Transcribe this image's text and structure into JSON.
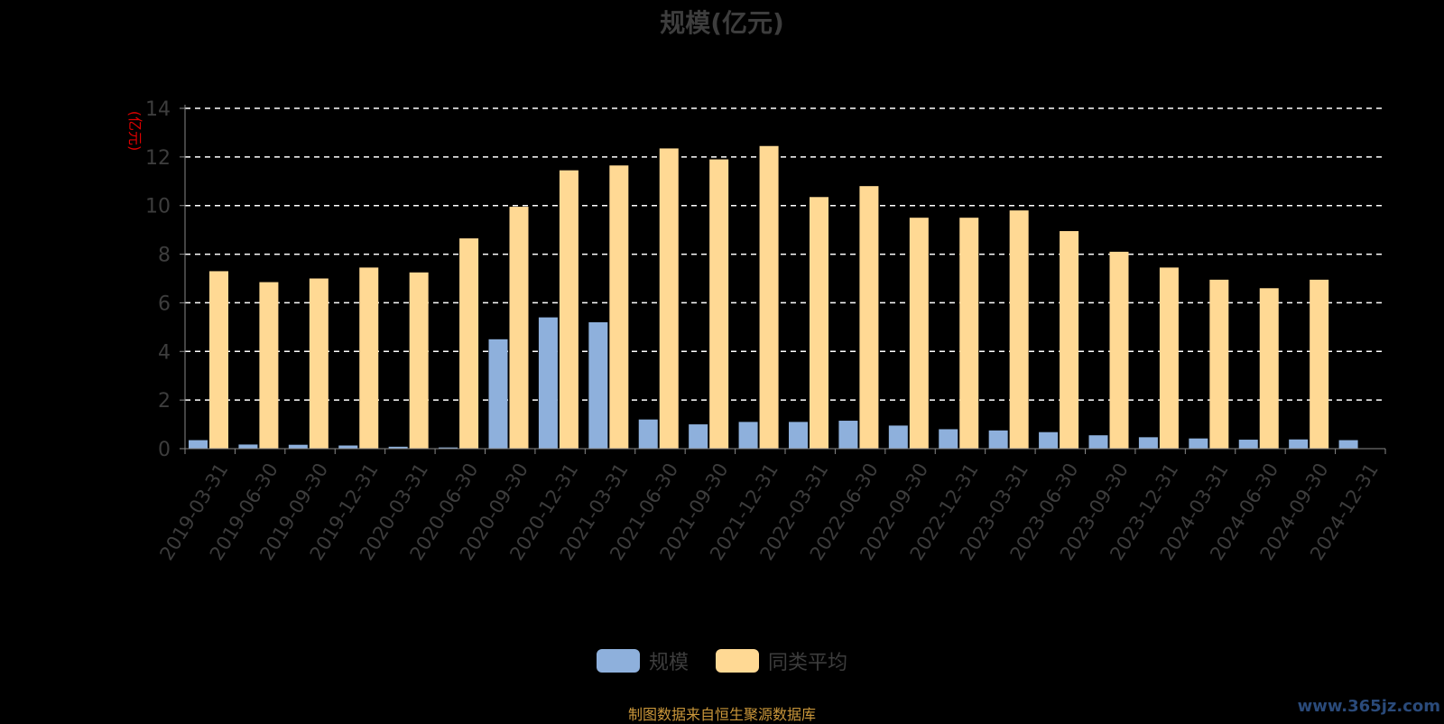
{
  "chart_data": {
    "type": "bar",
    "title": "规模(亿元)",
    "ylabel": "(亿元)",
    "ylim": [
      0,
      14
    ],
    "yticks": [
      0,
      2,
      4,
      6,
      8,
      10,
      12,
      14
    ],
    "grid": true,
    "legend_position": "bottom",
    "categories": [
      "2019-03-31",
      "2019-06-30",
      "2019-09-30",
      "2019-12-31",
      "2020-03-31",
      "2020-06-30",
      "2020-09-30",
      "2020-12-31",
      "2021-03-31",
      "2021-06-30",
      "2021-09-30",
      "2021-12-31",
      "2022-03-31",
      "2022-06-30",
      "2022-09-30",
      "2022-12-31",
      "2023-03-31",
      "2023-06-30",
      "2023-09-30",
      "2023-12-31",
      "2024-03-31",
      "2024-06-30",
      "2024-09-30",
      "2024-12-31"
    ],
    "series": [
      {
        "name": "规模",
        "color": "#8eb0dc",
        "values": [
          0.35,
          0.17,
          0.16,
          0.13,
          0.08,
          0.05,
          4.5,
          5.4,
          5.2,
          1.2,
          1.0,
          1.1,
          1.1,
          1.15,
          0.95,
          0.8,
          0.75,
          0.68,
          0.55,
          0.47,
          0.42,
          0.37,
          0.38,
          0.35
        ]
      },
      {
        "name": "同类平均",
        "color": "#ffd994",
        "values": [
          7.3,
          6.85,
          7.0,
          7.45,
          7.25,
          8.65,
          9.95,
          11.45,
          11.65,
          12.35,
          11.9,
          12.45,
          10.35,
          10.8,
          9.5,
          9.5,
          9.8,
          8.95,
          8.1,
          7.45,
          6.95,
          6.6,
          6.95,
          null
        ]
      }
    ]
  },
  "page": {
    "title": "规模(亿元)",
    "legend": [
      "规模",
      "同类平均"
    ],
    "source": "制图数据来自恒生聚源数据库",
    "watermark": "www.365jz.com"
  },
  "colors": {
    "grid": "#ffffff",
    "axis": "#888888",
    "tick_text": "#3d3d3d",
    "unit": "#dd0000"
  }
}
